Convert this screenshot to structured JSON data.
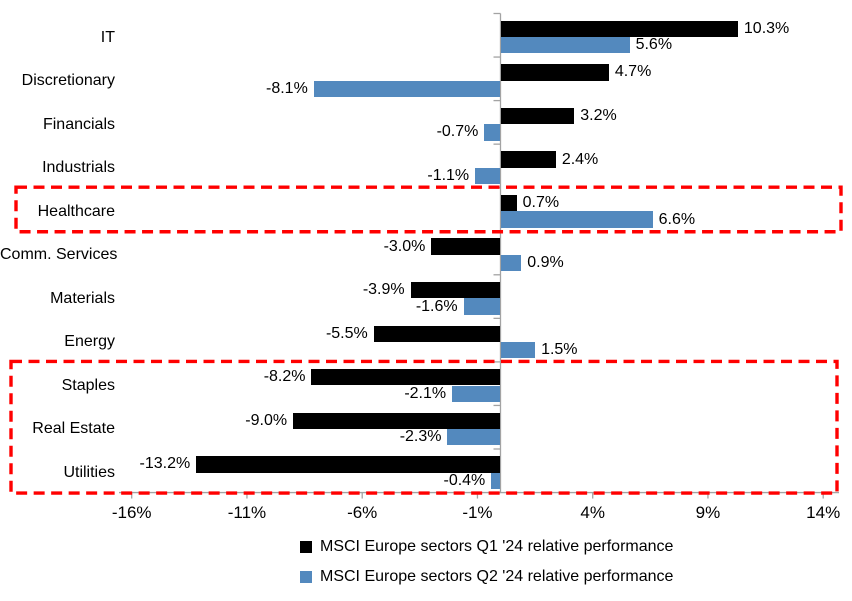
{
  "chart_data": {
    "type": "bar",
    "orientation": "horizontal",
    "title": "",
    "xlabel": "",
    "ylabel": "",
    "grid": false,
    "categories": [
      "IT",
      "Discretionary",
      "Financials",
      "Industrials",
      "Healthcare",
      "Comm. Services",
      "Materials",
      "Energy",
      "Staples",
      "Real Estate",
      "Utilities"
    ],
    "series": [
      {
        "name": "MSCI Europe sectors Q1 '24 relative performance",
        "color": "#000000",
        "values": [
          10.3,
          4.7,
          3.2,
          2.4,
          0.7,
          -3.0,
          -3.9,
          -5.5,
          -8.2,
          -9.0,
          -13.2
        ],
        "value_labels": [
          "10.3%",
          "4.7%",
          "3.2%",
          "2.4%",
          "0.7%",
          "-3.0%",
          "-3.9%",
          "-5.5%",
          "-8.2%",
          "-9.0%",
          "-13.2%"
        ]
      },
      {
        "name": "MSCI Europe sectors Q2 '24 relative performance",
        "color": "#5389BE",
        "values": [
          5.6,
          -8.1,
          -0.7,
          -1.1,
          6.6,
          0.9,
          -1.6,
          1.5,
          -2.1,
          -2.3,
          -0.4
        ],
        "value_labels": [
          "5.6%",
          "-8.1%",
          "-0.7%",
          "-1.1%",
          "6.6%",
          "0.9%",
          "-1.6%",
          "1.5%",
          "-2.1%",
          "-2.3%",
          "-0.4%"
        ]
      }
    ],
    "x_axis": {
      "ticks": [
        -16,
        -11,
        -6,
        -1,
        4,
        9,
        14
      ],
      "tick_labels": [
        "-16%",
        "-11%",
        "-6%",
        "-1%",
        "4%",
        "9%",
        "14%"
      ],
      "range": [
        -16.5,
        14.7
      ],
      "unit": "%"
    },
    "legend": {
      "position": "bottom",
      "entries": [
        "MSCI Europe sectors Q1 '24 relative performance",
        "MSCI Europe sectors Q2 '24 relative performance"
      ]
    },
    "annotations": [
      {
        "type": "dashed-box",
        "color": "#FF0000",
        "rows": [
          "Healthcare"
        ]
      },
      {
        "type": "dashed-box",
        "color": "#FF0000",
        "rows": [
          "Staples",
          "Real Estate",
          "Utilities"
        ]
      }
    ]
  }
}
